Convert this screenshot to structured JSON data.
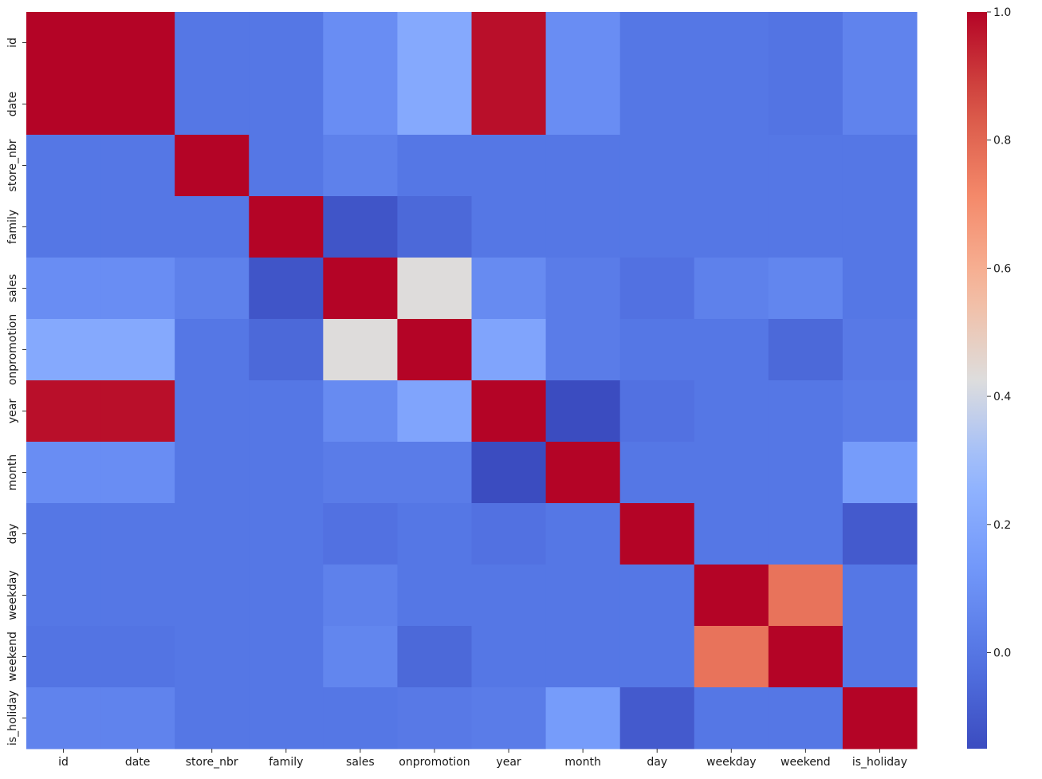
{
  "chart_data": {
    "type": "heatmap",
    "title": "",
    "xlabel": "",
    "ylabel": "",
    "colormap": "coolwarm",
    "labels": [
      "id",
      "date",
      "store_nbr",
      "family",
      "sales",
      "onpromotion",
      "year",
      "month",
      "day",
      "weekday",
      "weekend",
      "is_holiday"
    ],
    "matrix": [
      [
        1.0,
        1.0,
        0.0,
        0.0,
        0.09,
        0.21,
        0.98,
        0.09,
        0.0,
        0.0,
        -0.01,
        0.05
      ],
      [
        1.0,
        1.0,
        0.0,
        0.0,
        0.09,
        0.21,
        0.98,
        0.09,
        0.0,
        0.0,
        -0.01,
        0.05
      ],
      [
        0.0,
        0.0,
        1.0,
        0.0,
        0.04,
        0.0,
        0.0,
        0.0,
        0.0,
        0.0,
        0.0,
        0.0
      ],
      [
        0.0,
        0.0,
        0.0,
        1.0,
        -0.12,
        -0.05,
        0.0,
        0.0,
        0.0,
        0.0,
        0.0,
        0.0
      ],
      [
        0.09,
        0.09,
        0.04,
        -0.12,
        1.0,
        0.43,
        0.08,
        0.02,
        -0.02,
        0.04,
        0.06,
        0.0
      ],
      [
        0.21,
        0.21,
        0.0,
        -0.05,
        0.43,
        1.0,
        0.19,
        0.02,
        0.0,
        0.0,
        -0.05,
        0.01
      ],
      [
        0.98,
        0.98,
        0.0,
        0.0,
        0.08,
        0.19,
        1.0,
        -0.15,
        -0.02,
        0.0,
        0.0,
        0.02
      ],
      [
        0.09,
        0.09,
        0.0,
        0.0,
        0.02,
        0.02,
        -0.15,
        1.0,
        0.0,
        0.0,
        0.0,
        0.15
      ],
      [
        0.0,
        0.0,
        0.0,
        0.0,
        -0.02,
        0.0,
        -0.02,
        0.0,
        1.0,
        0.0,
        0.0,
        -0.1
      ],
      [
        0.0,
        0.0,
        0.0,
        0.0,
        0.04,
        0.0,
        0.0,
        0.0,
        0.0,
        1.0,
        0.77,
        0.0
      ],
      [
        -0.01,
        -0.01,
        0.0,
        0.0,
        0.06,
        -0.05,
        0.0,
        0.0,
        0.0,
        0.77,
        1.0,
        0.0
      ],
      [
        0.05,
        0.05,
        0.0,
        0.0,
        0.0,
        0.01,
        0.02,
        0.15,
        -0.1,
        0.0,
        0.0,
        1.0
      ]
    ],
    "colorbar": {
      "vmin": -0.15,
      "vmax": 1.0,
      "ticks": [
        0.0,
        0.2,
        0.4,
        0.6,
        0.8,
        1.0
      ],
      "tick_labels": [
        "0.0",
        "0.2",
        "0.4",
        "0.6",
        "0.8",
        "1.0"
      ]
    },
    "grid": false,
    "legend": "colorbar-right"
  }
}
